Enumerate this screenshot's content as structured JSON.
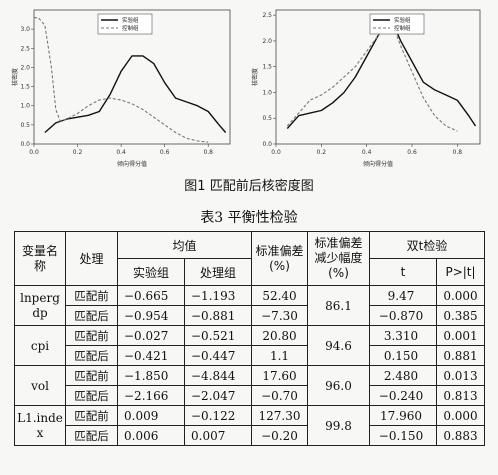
{
  "chart_data": [
    {
      "type": "line",
      "title": "",
      "ylabel": "核密度",
      "xlabel": "倾向得分值",
      "xlim": [
        0,
        0.9
      ],
      "ylim": [
        0,
        3.5
      ],
      "xticks": [
        "0.0",
        "0.2",
        "0.4",
        "0.6",
        "0.8"
      ],
      "yticks": [
        "0.0",
        "0.5",
        "1.0",
        "1.5",
        "2.0",
        "2.5",
        "3.0"
      ],
      "legend_position": "top-center",
      "series": [
        {
          "name": "实验组",
          "style": "solid",
          "color": "#111111",
          "x": [
            0.05,
            0.1,
            0.15,
            0.2,
            0.25,
            0.3,
            0.35,
            0.4,
            0.45,
            0.5,
            0.55,
            0.6,
            0.65,
            0.7,
            0.75,
            0.8,
            0.85,
            0.88
          ],
          "y": [
            0.3,
            0.55,
            0.65,
            0.7,
            0.75,
            0.85,
            1.3,
            1.9,
            2.3,
            2.3,
            2.1,
            1.6,
            1.2,
            1.1,
            1.0,
            0.85,
            0.5,
            0.3
          ]
        },
        {
          "name": "控制组",
          "style": "dashed",
          "color": "#777777",
          "x": [
            0.0,
            0.02,
            0.05,
            0.08,
            0.1,
            0.12,
            0.15,
            0.2,
            0.25,
            0.3,
            0.35,
            0.4,
            0.45,
            0.5,
            0.55,
            0.6,
            0.65,
            0.7,
            0.75,
            0.8
          ],
          "y": [
            3.3,
            3.3,
            3.1,
            2.0,
            0.9,
            0.6,
            0.65,
            0.8,
            1.0,
            1.15,
            1.2,
            1.15,
            1.05,
            0.9,
            0.7,
            0.5,
            0.3,
            0.15,
            0.08,
            0.05
          ]
        }
      ]
    },
    {
      "type": "line",
      "title": "",
      "ylabel": "核密度",
      "xlabel": "倾向得分值",
      "xlim": [
        0,
        0.9
      ],
      "ylim": [
        0,
        2.6
      ],
      "xticks": [
        "0.0",
        "0.2",
        "0.4",
        "0.6",
        "0.8"
      ],
      "yticks": [
        "0.0",
        "0.5",
        "1.0",
        "1.5",
        "2.0",
        "2.5"
      ],
      "legend_position": "top-right",
      "series": [
        {
          "name": "实验组",
          "style": "solid",
          "color": "#111111",
          "x": [
            0.05,
            0.1,
            0.15,
            0.2,
            0.25,
            0.3,
            0.35,
            0.4,
            0.45,
            0.48,
            0.52,
            0.55,
            0.6,
            0.65,
            0.7,
            0.75,
            0.8,
            0.85,
            0.88
          ],
          "y": [
            0.3,
            0.55,
            0.6,
            0.65,
            0.8,
            1.0,
            1.3,
            1.7,
            2.1,
            2.3,
            2.3,
            2.0,
            1.6,
            1.2,
            1.05,
            0.95,
            0.85,
            0.55,
            0.35
          ]
        },
        {
          "name": "控制组",
          "style": "dashed",
          "color": "#777777",
          "x": [
            0.05,
            0.1,
            0.15,
            0.2,
            0.25,
            0.3,
            0.35,
            0.4,
            0.45,
            0.48,
            0.52,
            0.55,
            0.6,
            0.65,
            0.7,
            0.75,
            0.8
          ],
          "y": [
            0.35,
            0.6,
            0.85,
            0.95,
            1.1,
            1.3,
            1.5,
            1.8,
            2.1,
            2.3,
            2.25,
            1.9,
            1.4,
            0.9,
            0.55,
            0.35,
            0.25
          ]
        }
      ]
    }
  ],
  "figure_caption": "图1  匹配前后核密度图",
  "table_caption": "表3  平衡性检验",
  "table": {
    "headers": {
      "variable": "变量名称",
      "treatment": "处理",
      "mean": "均值",
      "treated": "实验组",
      "control": "处理组",
      "std_bias": "标准偏差(%)",
      "std_bias_reduction": "标准偏差减少幅度(%)",
      "ttest": "双t检验",
      "t": "t",
      "p": "P>|t|"
    },
    "rows": [
      {
        "variable": "lnpergdp",
        "reduction": "86.1",
        "before": {
          "label": "匹配前",
          "treated": "−0.665",
          "control": "−1.193",
          "bias": "52.40",
          "t": "9.47",
          "p": "0.000"
        },
        "after": {
          "label": "匹配后",
          "treated": "−0.954",
          "control": "−0.881",
          "bias": "−7.30",
          "t": "−0.870",
          "p": "0.385"
        }
      },
      {
        "variable": "cpi",
        "reduction": "94.6",
        "before": {
          "label": "匹配前",
          "treated": "−0.027",
          "control": "−0.521",
          "bias": "20.80",
          "t": "3.310",
          "p": "0.001"
        },
        "after": {
          "label": "匹配后",
          "treated": "−0.421",
          "control": "−0.447",
          "bias": "1.1",
          "t": "0.150",
          "p": "0.881"
        }
      },
      {
        "variable": "vol",
        "reduction": "96.0",
        "before": {
          "label": "匹配前",
          "treated": "−1.850",
          "control": "−4.844",
          "bias": "17.60",
          "t": "2.480",
          "p": "0.013"
        },
        "after": {
          "label": "匹配后",
          "treated": "−2.166",
          "control": "−2.047",
          "bias": "−0.70",
          "t": "−0.240",
          "p": "0.813"
        }
      },
      {
        "variable": "L1.index",
        "reduction": "99.8",
        "before": {
          "label": "匹配前",
          "treated": "0.009",
          "control": "−0.122",
          "bias": "127.30",
          "t": "17.960",
          "p": "0.000"
        },
        "after": {
          "label": "匹配后",
          "treated": "0.006",
          "control": "0.007",
          "bias": "−0.20",
          "t": "−0.150",
          "p": "0.883"
        }
      }
    ]
  }
}
